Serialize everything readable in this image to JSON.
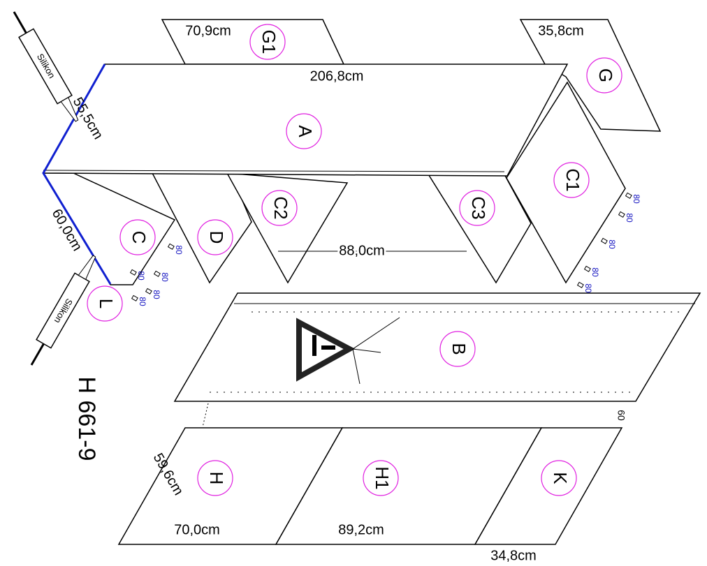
{
  "title": "H 661-9",
  "dimensions": {
    "g1_width": "70,9cm",
    "g_width": "35,8cm",
    "a_length": "206,8cm",
    "a_depth": "55,5cm",
    "side_height": "60,0cm",
    "inner_gap": "88,0cm",
    "h_depth": "59,6cm",
    "h_width": "70,0cm",
    "h1_width": "89,2cm",
    "k_width": "34,8cm"
  },
  "parts": {
    "g1": "G1",
    "g": "G",
    "a": "A",
    "c1": "C1",
    "c": "C",
    "d": "D",
    "c2": "C2",
    "c3": "C3",
    "l": "L",
    "b": "B",
    "h": "H",
    "h1": "H1",
    "k": "K"
  },
  "silicone": [
    "Silikon",
    "Silikon"
  ],
  "screw_labels": [
    "80",
    "80",
    "80",
    "80",
    "80",
    "80",
    "80",
    "80",
    "80",
    "80"
  ],
  "edge_label": "60"
}
